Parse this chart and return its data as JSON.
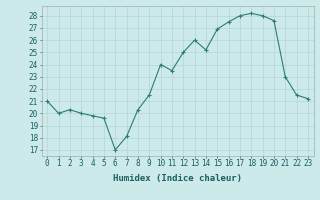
{
  "x": [
    0,
    1,
    2,
    3,
    4,
    5,
    6,
    7,
    8,
    9,
    10,
    11,
    12,
    13,
    14,
    15,
    16,
    17,
    18,
    19,
    20,
    21,
    22,
    23
  ],
  "y": [
    21.0,
    20.0,
    20.3,
    20.0,
    19.8,
    19.6,
    17.0,
    18.1,
    20.3,
    21.5,
    24.0,
    23.5,
    25.0,
    26.0,
    25.2,
    26.9,
    27.5,
    28.0,
    28.2,
    28.0,
    27.6,
    23.0,
    21.5,
    21.2
  ],
  "line_color": "#2e7d6e",
  "marker": "+",
  "marker_size": 3.0,
  "line_width": 0.8,
  "bg_color": "#cceaea",
  "grid_color": "#b0d0d0",
  "xlabel": "Humidex (Indice chaleur)",
  "xlim": [
    -0.5,
    23.5
  ],
  "ylim": [
    16.5,
    28.8
  ],
  "yticks": [
    17,
    18,
    19,
    20,
    21,
    22,
    23,
    24,
    25,
    26,
    27,
    28
  ],
  "xticks": [
    0,
    1,
    2,
    3,
    4,
    5,
    6,
    7,
    8,
    9,
    10,
    11,
    12,
    13,
    14,
    15,
    16,
    17,
    18,
    19,
    20,
    21,
    22,
    23
  ],
  "tick_label_size": 5.5,
  "xlabel_size": 6.5,
  "tick_color": "#1a5f5f",
  "spine_color": "#aaaaaa"
}
